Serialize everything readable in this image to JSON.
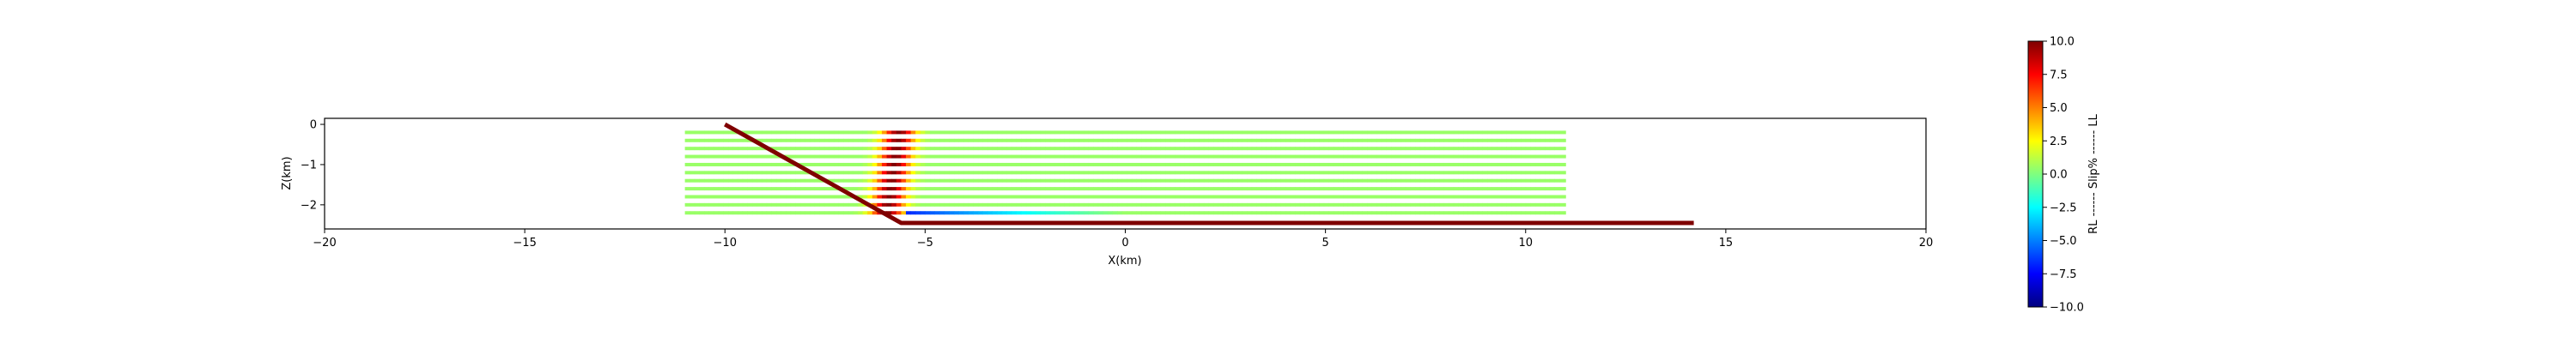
{
  "chart_data": [
    {
      "type": "line",
      "title": "",
      "xlabel": "X(km)",
      "ylabel": "Z(km)",
      "xlim": [
        -20,
        20
      ],
      "ylim": [
        -2.6,
        0.15
      ],
      "xticks": [
        -20,
        -15,
        -10,
        -5,
        0,
        5,
        10,
        15,
        20
      ],
      "yticks": [
        0,
        -1,
        -2
      ],
      "xtick_labels": [
        "−20",
        "−15",
        "−10",
        "−5",
        "0",
        "5",
        "10",
        "15",
        "20"
      ],
      "ytick_labels": [
        "0",
        "−1",
        "−2"
      ],
      "grid": false,
      "layers": {
        "x_range": [
          -11,
          11
        ],
        "depths": [
          -0.2,
          -0.4,
          -0.6,
          -0.8,
          -1.0,
          -1.2,
          -1.4,
          -1.6,
          -1.8,
          -2.0,
          -2.2
        ],
        "background_slip": 0.5
      },
      "slip_features": [
        {
          "kind": "left-lateral band",
          "x_center": -5.8,
          "width_km": 1.0,
          "slip_max": 10
        },
        {
          "kind": "right-lateral streak",
          "depth": -2.2,
          "x_start": -6,
          "x_end": 0,
          "slip_min": -8
        }
      ],
      "fault_trace": {
        "color": "#7f0000",
        "points": [
          [
            -10,
            0
          ],
          [
            -5.6,
            -2.45
          ],
          [
            14.2,
            -2.45
          ]
        ]
      }
    },
    {
      "type": "heatmap",
      "label": "RL ------ Slip% ------ LL",
      "colormap": "jet",
      "range": [
        -10,
        10
      ],
      "ticks": [
        10.0,
        7.5,
        5.0,
        2.5,
        0.0,
        -2.5,
        -5.0,
        -7.5,
        -10.0
      ],
      "tick_labels": [
        "10.0",
        "7.5",
        "5.0",
        "2.5",
        "0.0",
        "−2.5",
        "−5.0",
        "−7.5",
        "−10.0"
      ]
    }
  ]
}
